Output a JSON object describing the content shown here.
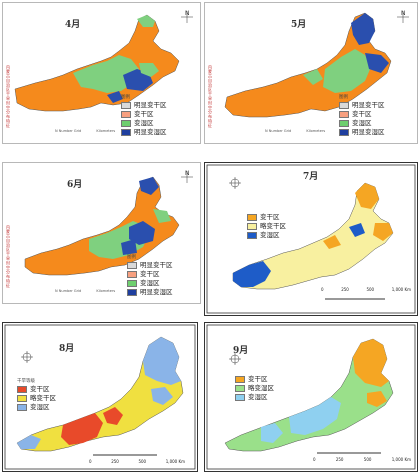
{
  "panels": [
    {
      "month": "4月",
      "side_text": "内蒙古自治区干旱时空分布特征",
      "legend_title": "图例",
      "legend": [
        {
          "label": "明显变干区",
          "color": "#d9d9d9"
        },
        {
          "label": "变干区",
          "color": "#f7a080"
        },
        {
          "label": "变湿区",
          "color": "#6fd06f"
        },
        {
          "label": "明显变湿区",
          "color": "#1f3f9f"
        }
      ],
      "footer": [
        "N",
        "Number Grid",
        "Kilometers"
      ]
    },
    {
      "month": "5月",
      "side_text": "内蒙古自治区干旱时空分布特征",
      "legend_title": "图例",
      "legend": [
        {
          "label": "明显变干区",
          "color": "#d9d9d9"
        },
        {
          "label": "变干区",
          "color": "#f7a080"
        },
        {
          "label": "变湿区",
          "color": "#6fd06f"
        },
        {
          "label": "明显变湿区",
          "color": "#1f3f9f"
        }
      ],
      "footer": [
        "N",
        "Number Grid",
        "Kilometers"
      ]
    },
    {
      "month": "6月",
      "side_text": "内蒙古自治区干旱时空分布特征",
      "legend_title": "图例",
      "legend": [
        {
          "label": "明显变干区",
          "color": "#d9d9d9"
        },
        {
          "label": "变干区",
          "color": "#f7a080"
        },
        {
          "label": "变湿区",
          "color": "#6fd06f"
        },
        {
          "label": "明显变湿区",
          "color": "#1f3f9f"
        }
      ],
      "footer": [
        "N",
        "Number Grid",
        "Kilometers"
      ]
    },
    {
      "month": "7月",
      "legend": [
        {
          "label": "变干区",
          "color": "#f5a623"
        },
        {
          "label": "略变干区",
          "color": "#f8f0a0"
        },
        {
          "label": "变湿区",
          "color": "#1e5cc8"
        }
      ],
      "scale": [
        "0",
        "250",
        "500",
        "1,000 Km"
      ]
    },
    {
      "month": "8月",
      "legend_title": "干旱等级",
      "legend": [
        {
          "label": "变干区",
          "color": "#e84a2a"
        },
        {
          "label": "略变干区",
          "color": "#f0e040"
        },
        {
          "label": "变湿区",
          "color": "#8ab4e8"
        }
      ],
      "scale": [
        "0",
        "250",
        "500",
        "1,000 Km"
      ]
    },
    {
      "month": "9月",
      "legend": [
        {
          "label": "变干区",
          "color": "#f5a623"
        },
        {
          "label": "略变湿区",
          "color": "#9ae08a"
        },
        {
          "label": "变湿区",
          "color": "#8fd0f0"
        }
      ],
      "scale": [
        "0",
        "250",
        "500",
        "1,000 Km"
      ]
    }
  ]
}
